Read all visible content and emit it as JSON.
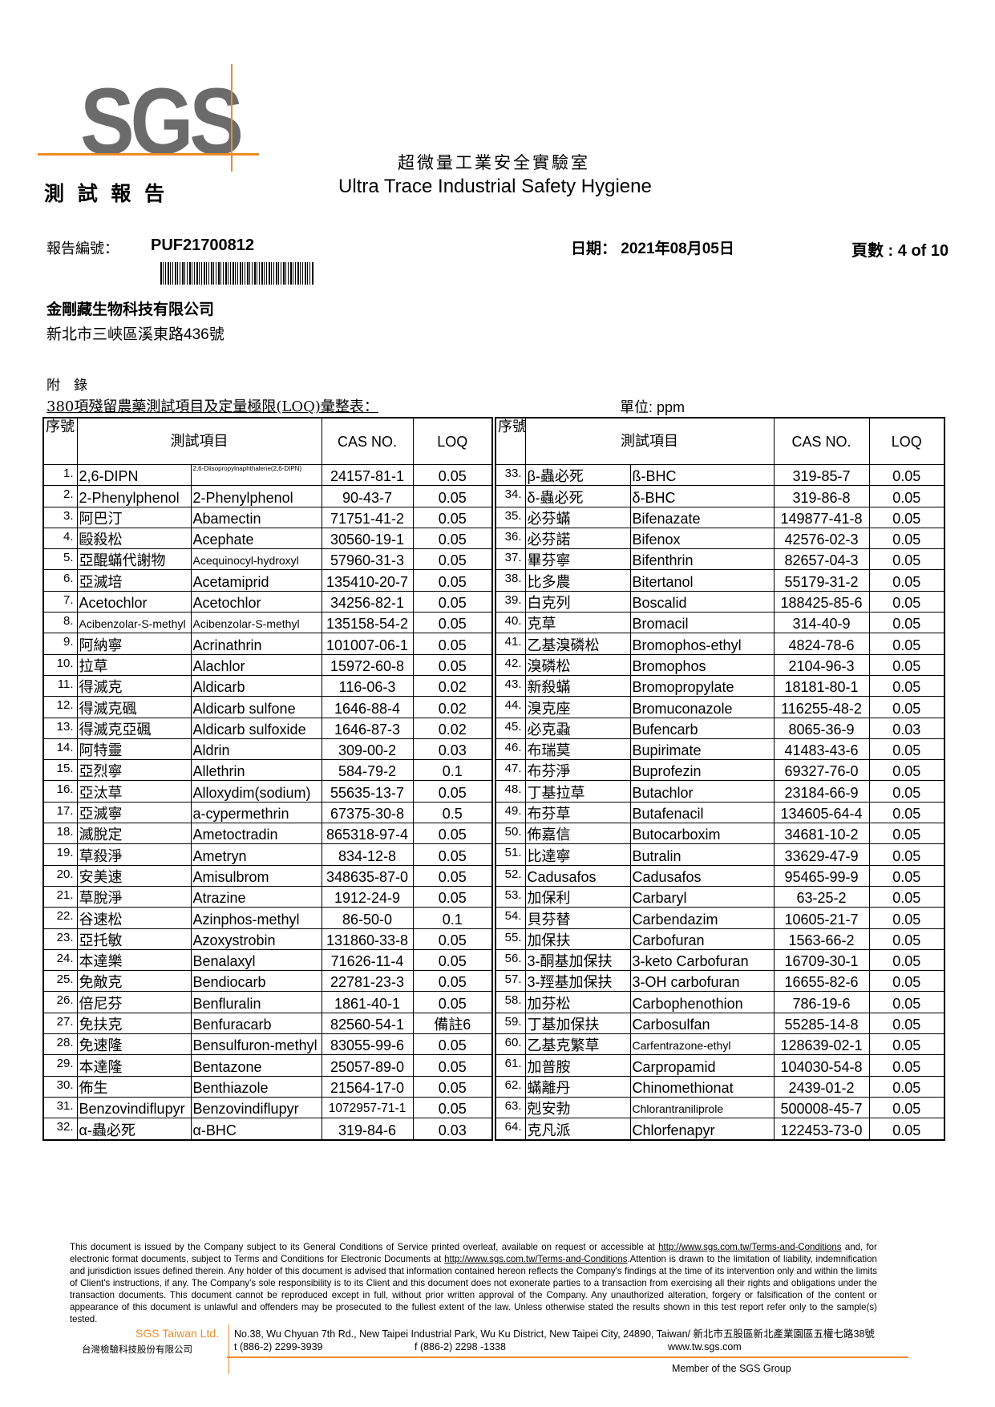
{
  "header": {
    "logo": "SGS",
    "doc_type": "測 試 報 告",
    "lab_name_zh": "超微量工業安全實驗室",
    "lab_name_en": "Ultra Trace Industrial Safety Hygiene",
    "report_no_label": "報告編號：",
    "report_no": "PUF21700812",
    "date_label": "日期：",
    "date": "2021年08月05日",
    "page_label": "頁數 :",
    "page": "4 of 10",
    "company": "金剛藏生物科技有限公司",
    "address": "新北市三峽區溪東路436號"
  },
  "appendix": {
    "label": "附　錄",
    "title": "380項殘留農藥測試項目及定量極限(LOQ)彙整表：",
    "unit": "單位: ppm"
  },
  "table": {
    "headers": {
      "seq": "序號",
      "item": "測試項目",
      "cas": "CAS NO.",
      "loq": "LOQ"
    },
    "left": [
      [
        "1.",
        "2,6-DIPN",
        "2,6-Diisopropylnaphthalene(2,6-DIPN)",
        "24157-81-1",
        "0.05"
      ],
      [
        "2.",
        "2-Phenylphenol",
        "2-Phenylphenol",
        "90-43-7",
        "0.05"
      ],
      [
        "3.",
        "阿巴汀",
        "Abamectin",
        "71751-41-2",
        "0.05"
      ],
      [
        "4.",
        "毆殺松",
        "Acephate",
        "30560-19-1",
        "0.05"
      ],
      [
        "5.",
        "亞醌蟎代謝物",
        "Acequinocyl-hydroxyl",
        "57960-31-3",
        "0.05"
      ],
      [
        "6.",
        "亞滅培",
        "Acetamiprid",
        "135410-20-7",
        "0.05"
      ],
      [
        "7.",
        "Acetochlor",
        "Acetochlor",
        "34256-82-1",
        "0.05"
      ],
      [
        "8.",
        "Acibenzolar-S-methyl",
        "Acibenzolar-S-methyl",
        "135158-54-2",
        "0.05"
      ],
      [
        "9.",
        "阿納寧",
        "Acrinathrin",
        "101007-06-1",
        "0.05"
      ],
      [
        "10.",
        "拉草",
        "Alachlor",
        "15972-60-8",
        "0.05"
      ],
      [
        "11.",
        "得滅克",
        "Aldicarb",
        "116-06-3",
        "0.02"
      ],
      [
        "12.",
        "得滅克碸",
        "Aldicarb sulfone",
        "1646-88-4",
        "0.02"
      ],
      [
        "13.",
        "得滅克亞碸",
        "Aldicarb sulfoxide",
        "1646-87-3",
        "0.02"
      ],
      [
        "14.",
        "阿特靈",
        "Aldrin",
        "309-00-2",
        "0.03"
      ],
      [
        "15.",
        "亞烈寧",
        "Allethrin",
        "584-79-2",
        "0.1"
      ],
      [
        "16.",
        "亞汰草",
        "Alloxydim(sodium)",
        "55635-13-7",
        "0.05"
      ],
      [
        "17.",
        "亞滅寧",
        "a-cypermethrin",
        "67375-30-8",
        "0.5"
      ],
      [
        "18.",
        "滅脫定",
        "Ametoctradin",
        "865318-97-4",
        "0.05"
      ],
      [
        "19.",
        "草殺淨",
        "Ametryn",
        "834-12-8",
        "0.05"
      ],
      [
        "20.",
        "安美速",
        "Amisulbrom",
        "348635-87-0",
        "0.05"
      ],
      [
        "21.",
        "草脫淨",
        "Atrazine",
        "1912-24-9",
        "0.05"
      ],
      [
        "22.",
        "谷速松",
        "Azinphos-methyl",
        "86-50-0",
        "0.1"
      ],
      [
        "23.",
        "亞托敏",
        "Azoxystrobin",
        "131860-33-8",
        "0.05"
      ],
      [
        "24.",
        "本達樂",
        "Benalaxyl",
        "71626-11-4",
        "0.05"
      ],
      [
        "25.",
        "免敵克",
        "Bendiocarb",
        "22781-23-3",
        "0.05"
      ],
      [
        "26.",
        "倍尼芬",
        "Benfluralin",
        "1861-40-1",
        "0.05"
      ],
      [
        "27.",
        "免扶克",
        "Benfuracarb",
        "82560-54-1",
        "備註6"
      ],
      [
        "28.",
        "免速隆",
        "Bensulfuron-methyl",
        "83055-99-6",
        "0.05"
      ],
      [
        "29.",
        "本達隆",
        "Bentazone",
        "25057-89-0",
        "0.05"
      ],
      [
        "30.",
        "佈生",
        "Benthiazole",
        "21564-17-0",
        "0.05"
      ],
      [
        "31.",
        "Benzovindiflupyr",
        "Benzovindiflupyr",
        "1072957-71-1",
        "0.05"
      ],
      [
        "32.",
        "α-蟲必死",
        "α-BHC",
        "319-84-6",
        "0.03"
      ]
    ],
    "right": [
      [
        "33.",
        "β-蟲必死",
        "ß-BHC",
        "319-85-7",
        "0.05"
      ],
      [
        "34.",
        "δ-蟲必死",
        "δ-BHC",
        "319-86-8",
        "0.05"
      ],
      [
        "35.",
        "必芬蟎",
        "Bifenazate",
        "149877-41-8",
        "0.05"
      ],
      [
        "36.",
        "必芬諾",
        "Bifenox",
        "42576-02-3",
        "0.05"
      ],
      [
        "37.",
        "畢芬寧",
        "Bifenthrin",
        "82657-04-3",
        "0.05"
      ],
      [
        "38.",
        "比多農",
        "Bitertanol",
        "55179-31-2",
        "0.05"
      ],
      [
        "39.",
        "白克列",
        "Boscalid",
        "188425-85-6",
        "0.05"
      ],
      [
        "40.",
        "克草",
        "Bromacil",
        "314-40-9",
        "0.05"
      ],
      [
        "41.",
        "乙基溴磷松",
        "Bromophos-ethyl",
        "4824-78-6",
        "0.05"
      ],
      [
        "42.",
        "溴磷松",
        "Bromophos",
        "2104-96-3",
        "0.05"
      ],
      [
        "43.",
        "新殺蟎",
        "Bromopropylate",
        "18181-80-1",
        "0.05"
      ],
      [
        "44.",
        "溴克座",
        "Bromuconazole",
        "116255-48-2",
        "0.05"
      ],
      [
        "45.",
        "必克蝨",
        "Bufencarb",
        "8065-36-9",
        "0.03"
      ],
      [
        "46.",
        "布瑞莫",
        "Bupirimate",
        "41483-43-6",
        "0.05"
      ],
      [
        "47.",
        "布芬淨",
        "Buprofezin",
        "69327-76-0",
        "0.05"
      ],
      [
        "48.",
        "丁基拉草",
        "Butachlor",
        "23184-66-9",
        "0.05"
      ],
      [
        "49.",
        "布芬草",
        "Butafenacil",
        "134605-64-4",
        "0.05"
      ],
      [
        "50.",
        "佈嘉信",
        "Butocarboxim",
        "34681-10-2",
        "0.05"
      ],
      [
        "51.",
        "比達寧",
        "Butralin",
        "33629-47-9",
        "0.05"
      ],
      [
        "52.",
        "Cadusafos",
        "Cadusafos",
        "95465-99-9",
        "0.05"
      ],
      [
        "53.",
        "加保利",
        "Carbaryl",
        "63-25-2",
        "0.05"
      ],
      [
        "54.",
        "貝芬替",
        "Carbendazim",
        "10605-21-7",
        "0.05"
      ],
      [
        "55.",
        "加保扶",
        "Carbofuran",
        "1563-66-2",
        "0.05"
      ],
      [
        "56.",
        "3-酮基加保扶",
        "3-keto Carbofuran",
        "16709-30-1",
        "0.05"
      ],
      [
        "57.",
        "3-羥基加保扶",
        "3-OH carbofuran",
        "16655-82-6",
        "0.05"
      ],
      [
        "58.",
        "加芬松",
        "Carbophenothion",
        "786-19-6",
        "0.05"
      ],
      [
        "59.",
        "丁基加保扶",
        "Carbosulfan",
        "55285-14-8",
        "0.05"
      ],
      [
        "60.",
        "乙基克繁草",
        "Carfentrazone-ethyl",
        "128639-02-1",
        "0.05"
      ],
      [
        "61.",
        "加普胺",
        "Carpropamid",
        "104030-54-8",
        "0.05"
      ],
      [
        "62.",
        "蟎離丹",
        "Chinomethionat",
        "2439-01-2",
        "0.05"
      ],
      [
        "63.",
        "剋安勃",
        "Chlorantraniliprole",
        "500008-45-7",
        "0.05"
      ],
      [
        "64.",
        "克凡派",
        "Chlorfenapyr",
        "122453-73-0",
        "0.05"
      ]
    ]
  },
  "footer": {
    "disclaimer_1": "This document is issued by the Company subject to its General Conditions of Service printed overleaf, available on request or accessible at ",
    "link_1": "http://www.sgs.com.tw/Terms-and-Conditions",
    "disclaimer_2": " and, for electronic format documents, subject to Terms and Conditions for Electronic Documents at ",
    "link_2": "http://www.sgs.com.tw/Terms-and-Conditions",
    "disclaimer_3": ".Attention is drawn to the limitation of liability, indemnification and jurisdiction issues defined therein. Any holder of this document is advised that information contained hereon reflects the Company's findings at the time of its intervention only and within the limits of Client's instructions, if any. The Company's sole responsibility is to its Client and this document does not exonerate parties to a transaction from exercising all their rights and obligations under the transaction documents. This document cannot be reproduced except in full, without prior written approval of the Company. Any unauthorized alteration, forgery or falsification of the content or appearance of this document is unlawful and offenders may be prosecuted to the fullest extent of the law. Unless otherwise stated the results shown in this test report refer only to the sample(s) tested.",
    "company_en": "SGS Taiwan Ltd.",
    "company_zh": "台灣檢驗科技股份有限公司",
    "address": "No.38, Wu Chyuan 7th Rd., New Taipei Industrial Park, Wu Ku District, New Taipei City, 24890, Taiwan/ 新北市五股區新北產業園區五權七路38號",
    "tel": "t (886-2) 2299-3939",
    "fax": "f (886-2) 2298 -1338",
    "web": "www.tw.sgs.com",
    "member": "Member of the SGS Group"
  },
  "colors": {
    "brand_orange": "#f08a24",
    "logo_gray": "#6b6b6b"
  }
}
